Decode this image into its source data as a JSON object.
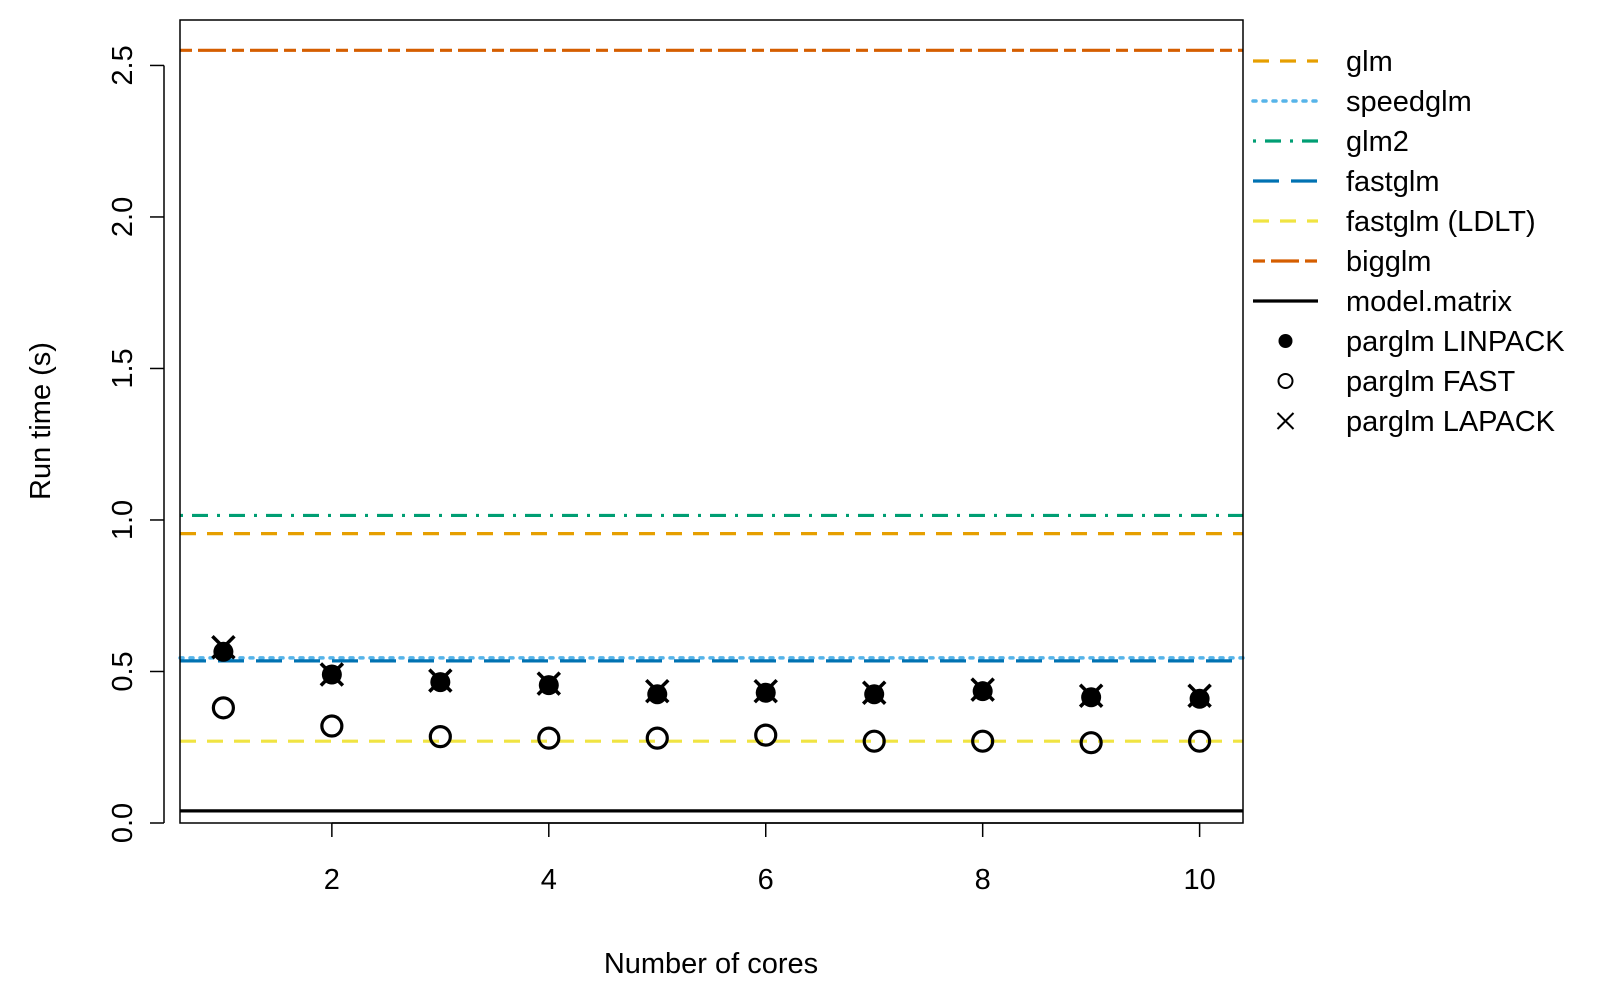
{
  "chart_data": {
    "type": "scatter",
    "title": "",
    "xlabel": "Number of cores",
    "ylabel": "Run time (s)",
    "xlim": [
      0.6,
      10.4
    ],
    "ylim": [
      0.0,
      2.65
    ],
    "x_ticks": [
      2,
      4,
      6,
      8,
      10
    ],
    "y_ticks": [
      0.0,
      0.5,
      1.0,
      1.5,
      2.0,
      2.5
    ],
    "x_tick_labels": [
      "2",
      "4",
      "6",
      "8",
      "10"
    ],
    "y_tick_labels": [
      "0.0",
      "0.5",
      "1.0",
      "1.5",
      "2.0",
      "2.5"
    ],
    "grid": false,
    "legend_position": "outside-right",
    "reference_lines": [
      {
        "name": "glm",
        "value": 0.955,
        "color": "#E69F00",
        "style": "dashed"
      },
      {
        "name": "speedglm",
        "value": 0.545,
        "color": "#56B4E9",
        "style": "dotted"
      },
      {
        "name": "glm2",
        "value": 1.015,
        "color": "#009E73",
        "style": "dotdash"
      },
      {
        "name": "fastglm",
        "value": 0.535,
        "color": "#0072B2",
        "style": "longdash"
      },
      {
        "name": "fastglm (LDLT)",
        "value": 0.27,
        "color": "#F0E442",
        "style": "dashed"
      },
      {
        "name": "bigglm",
        "value": 2.55,
        "color": "#D55E00",
        "style": "twodash"
      },
      {
        "name": "model.matrix",
        "value": 0.04,
        "color": "#000000",
        "style": "solid"
      }
    ],
    "point_series": [
      {
        "name": "parglm LINPACK",
        "marker": "filled-circle",
        "x": [
          1,
          2,
          3,
          4,
          5,
          6,
          7,
          8,
          9,
          10
        ],
        "values": [
          0.565,
          0.49,
          0.465,
          0.455,
          0.425,
          0.43,
          0.425,
          0.435,
          0.415,
          0.41
        ]
      },
      {
        "name": "parglm FAST",
        "marker": "open-circle",
        "x": [
          1,
          2,
          3,
          4,
          5,
          6,
          7,
          8,
          9,
          10
        ],
        "values": [
          0.38,
          0.32,
          0.285,
          0.28,
          0.28,
          0.29,
          0.27,
          0.27,
          0.265,
          0.27
        ]
      },
      {
        "name": "parglm LAPACK",
        "marker": "cross",
        "x": [
          1,
          2,
          3,
          4,
          5,
          6,
          7,
          8,
          9,
          10
        ],
        "values": [
          0.58,
          0.49,
          0.47,
          0.46,
          0.435,
          0.435,
          0.43,
          0.44,
          0.42,
          0.42
        ]
      }
    ],
    "legend": [
      "glm",
      "speedglm",
      "glm2",
      "fastglm",
      "fastglm (LDLT)",
      "bigglm",
      "model.matrix",
      "parglm LINPACK",
      "parglm FAST",
      "parglm LAPACK"
    ]
  }
}
